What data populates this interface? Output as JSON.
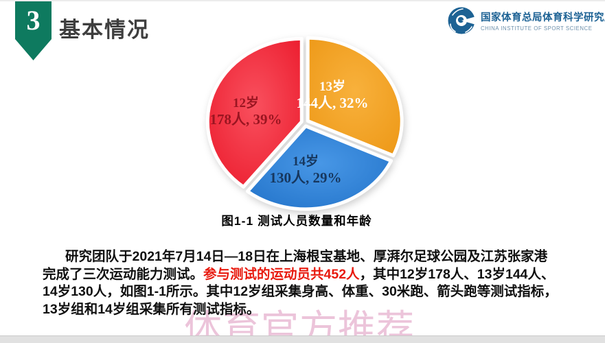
{
  "header": {
    "section_number": "3",
    "title": "基本情况"
  },
  "logo": {
    "icon": "circular-dragon-c-emblem",
    "name_cn": "国家体育总局体育科学研究所",
    "name_en": "CHINA INSTITUTE OF SPORT SCIENCE"
  },
  "chart_data": {
    "type": "pie",
    "title": "图1-1 测试人员数量和年龄",
    "total": 452,
    "unit": "人",
    "start_angle_deg": 0,
    "clockwise": true,
    "legend": "none",
    "slices": [
      {
        "label": "13岁",
        "value": 144,
        "percent": 32,
        "line1": "13岁",
        "line2": "144人, 32%",
        "color": "#ec9512",
        "color_light": "#f8b13c",
        "text_color": "#ffffff"
      },
      {
        "label": "14岁",
        "value": 130,
        "percent": 29,
        "line1": "14岁",
        "line2": "130人, 29%",
        "color": "#1e6fc6",
        "color_light": "#4897e6",
        "text_color": "#17375e"
      },
      {
        "label": "12岁",
        "value": 178,
        "percent": 39,
        "line1": "12岁",
        "line2": "178人, 39%",
        "color": "#e91325",
        "color_light": "#f9505e",
        "text_color": "#9a1521"
      }
    ]
  },
  "body": {
    "line1": "研究团队于2021年7月14日—18日在上海根宝基地、厚湃尔足球公园及江苏张家港",
    "line2_before": "完成了三次运动能力测试。",
    "line2_highlight": "参与测试的运动员共452人",
    "line2_after": "，其中12岁178人、13岁144人、",
    "line3": "14岁130人，如图1-1所示。其中12岁组采集身高、体重、30米跑、箭头跑等测试指标，",
    "line4": "13岁组和14岁组采集所有测试指标。"
  },
  "watermark": {
    "text": "体育官方推荐"
  },
  "theme": {
    "ribbon_green": "#0e7a5f",
    "title_color": "#3e3e3e",
    "logo_blue": "#1d6294",
    "logo_en_blue": "#6d90ab",
    "highlight_red": "#e8190d",
    "body_color": "#0f0f0f",
    "caption_color": "#000000",
    "watermark_pink": "#e8b6d2",
    "pie_stroke": "#ffffff"
  }
}
